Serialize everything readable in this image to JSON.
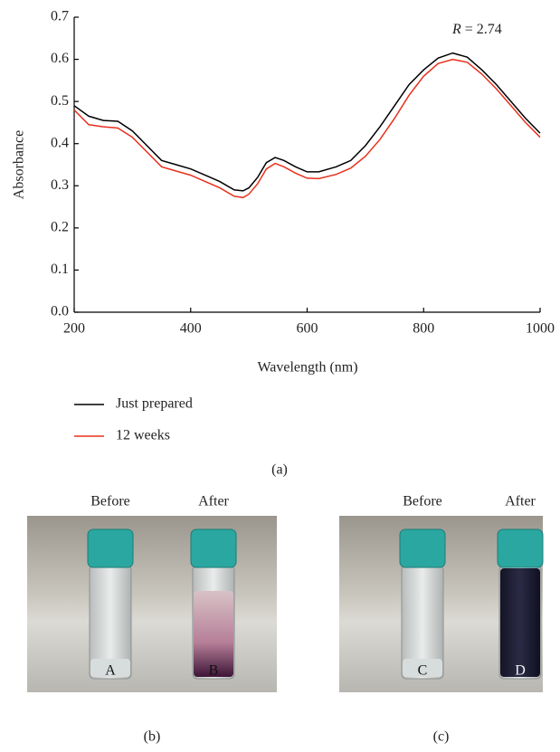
{
  "chart_data": {
    "type": "line",
    "x_label": "Wavelength (nm)",
    "y_label": "Absorbance",
    "annotation": {
      "symbol": "R",
      "text": "= 2.74"
    },
    "panel_label": "(a)",
    "x": [
      200,
      225,
      250,
      275,
      300,
      325,
      350,
      375,
      400,
      425,
      450,
      475,
      490,
      500,
      515,
      530,
      545,
      560,
      580,
      600,
      620,
      650,
      675,
      700,
      725,
      750,
      775,
      800,
      825,
      850,
      875,
      900,
      925,
      950,
      975,
      1000
    ],
    "series": [
      {
        "name": "Just prepared",
        "color": "#000000",
        "values": [
          0.49,
          0.465,
          0.455,
          0.453,
          0.43,
          0.395,
          0.36,
          0.35,
          0.34,
          0.325,
          0.31,
          0.29,
          0.288,
          0.295,
          0.32,
          0.355,
          0.367,
          0.36,
          0.345,
          0.333,
          0.333,
          0.345,
          0.36,
          0.395,
          0.44,
          0.49,
          0.54,
          0.575,
          0.603,
          0.615,
          0.605,
          0.575,
          0.54,
          0.5,
          0.46,
          0.425
        ]
      },
      {
        "name": "12 weeks",
        "color": "#e8301c",
        "values": [
          0.48,
          0.445,
          0.44,
          0.437,
          0.415,
          0.38,
          0.345,
          0.335,
          0.325,
          0.31,
          0.295,
          0.275,
          0.272,
          0.28,
          0.305,
          0.34,
          0.353,
          0.345,
          0.33,
          0.318,
          0.317,
          0.327,
          0.342,
          0.37,
          0.41,
          0.46,
          0.515,
          0.56,
          0.59,
          0.6,
          0.593,
          0.565,
          0.53,
          0.49,
          0.45,
          0.415
        ]
      }
    ],
    "xlim": [
      200,
      1000
    ],
    "xticks": [
      200,
      400,
      600,
      800,
      1000
    ],
    "ylim": [
      0,
      0.7
    ],
    "yticks": [
      {
        "value": 0,
        "label": "0.0"
      },
      0.1,
      0.2,
      0.3,
      0.4,
      0.5,
      0.6,
      0.7
    ]
  },
  "photos": [
    {
      "panel_label": "(b)",
      "vials": [
        {
          "caption": "Before",
          "letter": "A"
        },
        {
          "caption": "After",
          "letter": "B"
        }
      ]
    },
    {
      "panel_label": "(c)",
      "vials": [
        {
          "caption": "Before",
          "letter": "C"
        },
        {
          "caption": "After",
          "letter": "D"
        }
      ]
    }
  ]
}
